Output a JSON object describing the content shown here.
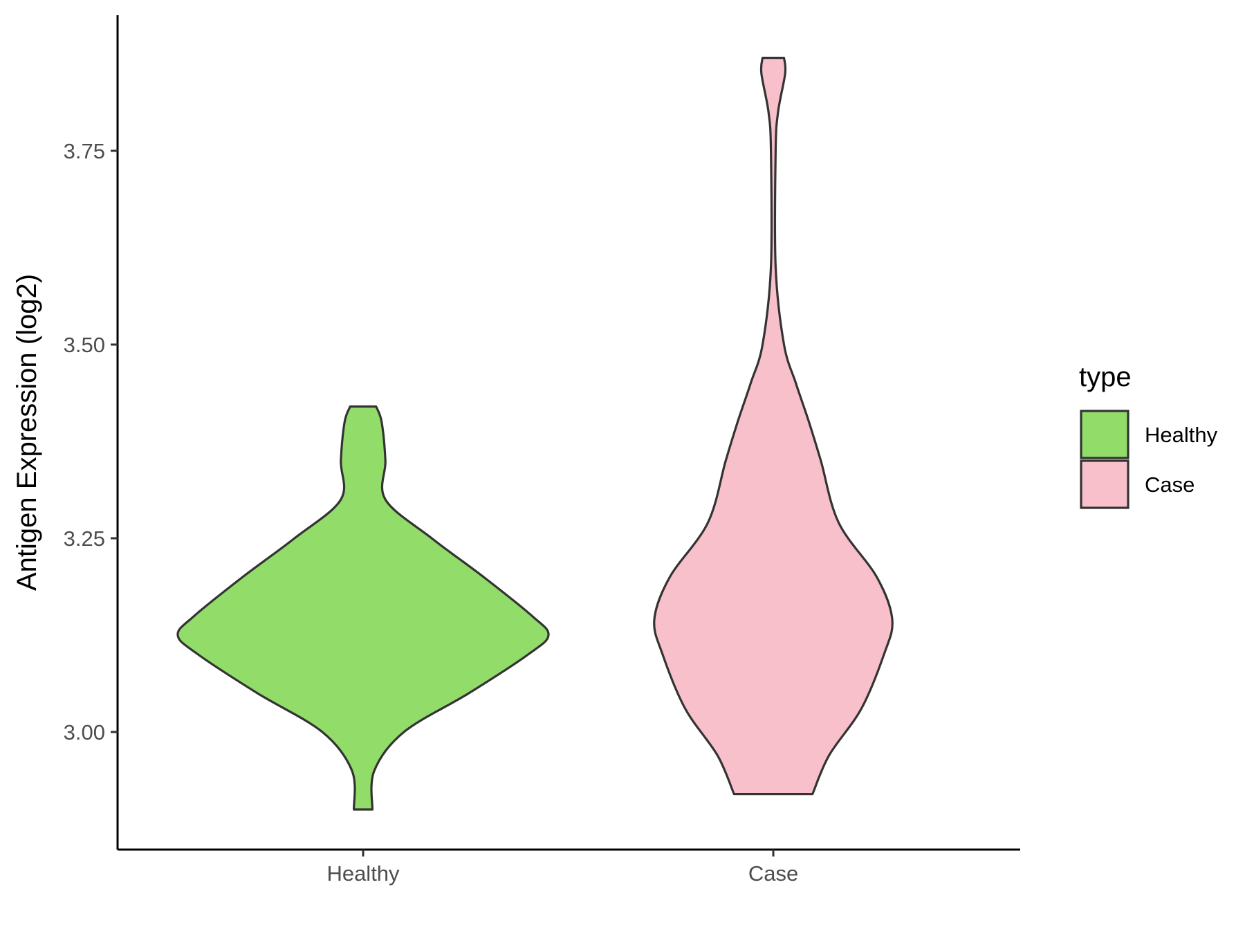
{
  "chart_data": {
    "type": "violin",
    "title": "",
    "xlabel": "",
    "ylabel": "Antigen Expression (log2)",
    "ylim": [
      2.85,
      3.92
    ],
    "y_ticks": [
      3.0,
      3.25,
      3.5,
      3.75
    ],
    "y_tick_labels": [
      "3.00",
      "3.25",
      "3.50",
      "3.75"
    ],
    "categories": [
      "Healthy",
      "Case"
    ],
    "grid": false,
    "legend": {
      "title": "type",
      "position": "right",
      "entries": [
        "Healthy",
        "Case"
      ]
    },
    "series": [
      {
        "name": "Healthy",
        "color": "#92dc6a",
        "y_min": 2.9,
        "y_max": 3.42,
        "density_profile": [
          [
            2.9,
            0.05
          ],
          [
            2.95,
            0.06
          ],
          [
            3.0,
            0.22
          ],
          [
            3.05,
            0.57
          ],
          [
            3.1,
            0.89
          ],
          [
            3.125,
            1.0
          ],
          [
            3.15,
            0.91
          ],
          [
            3.2,
            0.65
          ],
          [
            3.25,
            0.37
          ],
          [
            3.3,
            0.12
          ],
          [
            3.35,
            0.12
          ],
          [
            3.4,
            0.1
          ],
          [
            3.42,
            0.07
          ]
        ]
      },
      {
        "name": "Case",
        "color": "#f8c0cb",
        "y_min": 2.92,
        "y_max": 3.87,
        "density_profile": [
          [
            2.92,
            0.33
          ],
          [
            2.97,
            0.47
          ],
          [
            3.03,
            0.74
          ],
          [
            3.1,
            0.93
          ],
          [
            3.145,
            1.0
          ],
          [
            3.2,
            0.87
          ],
          [
            3.27,
            0.55
          ],
          [
            3.35,
            0.4
          ],
          [
            3.4,
            0.3
          ],
          [
            3.45,
            0.19
          ],
          [
            3.5,
            0.09
          ],
          [
            3.6,
            0.02
          ],
          [
            3.75,
            0.02
          ],
          [
            3.8,
            0.04
          ],
          [
            3.85,
            0.1
          ],
          [
            3.87,
            0.09
          ]
        ]
      }
    ]
  }
}
